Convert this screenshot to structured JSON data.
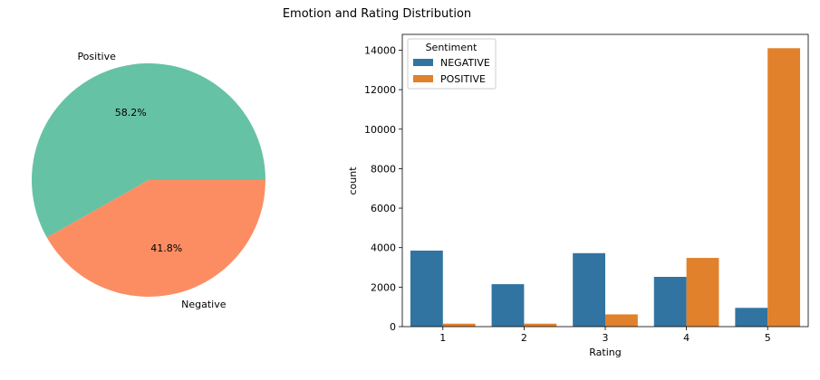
{
  "figure": {
    "title": "Emotion and Rating Distribution"
  },
  "chart_data": [
    {
      "type": "pie",
      "labels": [
        "Positive",
        "Negative"
      ],
      "values": [
        58.2,
        41.8
      ],
      "pct_labels": [
        "58.2%",
        "41.8%"
      ],
      "colors": [
        "#66c2a5",
        "#fc8d62"
      ]
    },
    {
      "type": "bar",
      "categories": [
        "1",
        "2",
        "3",
        "4",
        "5"
      ],
      "series": [
        {
          "name": "NEGATIVE",
          "color": "#3274a1",
          "values": [
            3850,
            2150,
            3720,
            2520,
            950
          ]
        },
        {
          "name": "POSITIVE",
          "color": "#e1812c",
          "values": [
            150,
            150,
            620,
            3480,
            14100
          ]
        }
      ],
      "xlabel": "Rating",
      "ylabel": "count",
      "ylim": [
        0,
        14800
      ],
      "yticks": [
        0,
        2000,
        4000,
        6000,
        8000,
        10000,
        12000,
        14000
      ],
      "ytick_labels": [
        "0",
        "2000",
        "4000",
        "6000",
        "8000",
        "10000",
        "12000",
        "14000"
      ],
      "legend": {
        "title": "Sentiment",
        "placement": "top-left"
      },
      "grid": false
    }
  ]
}
